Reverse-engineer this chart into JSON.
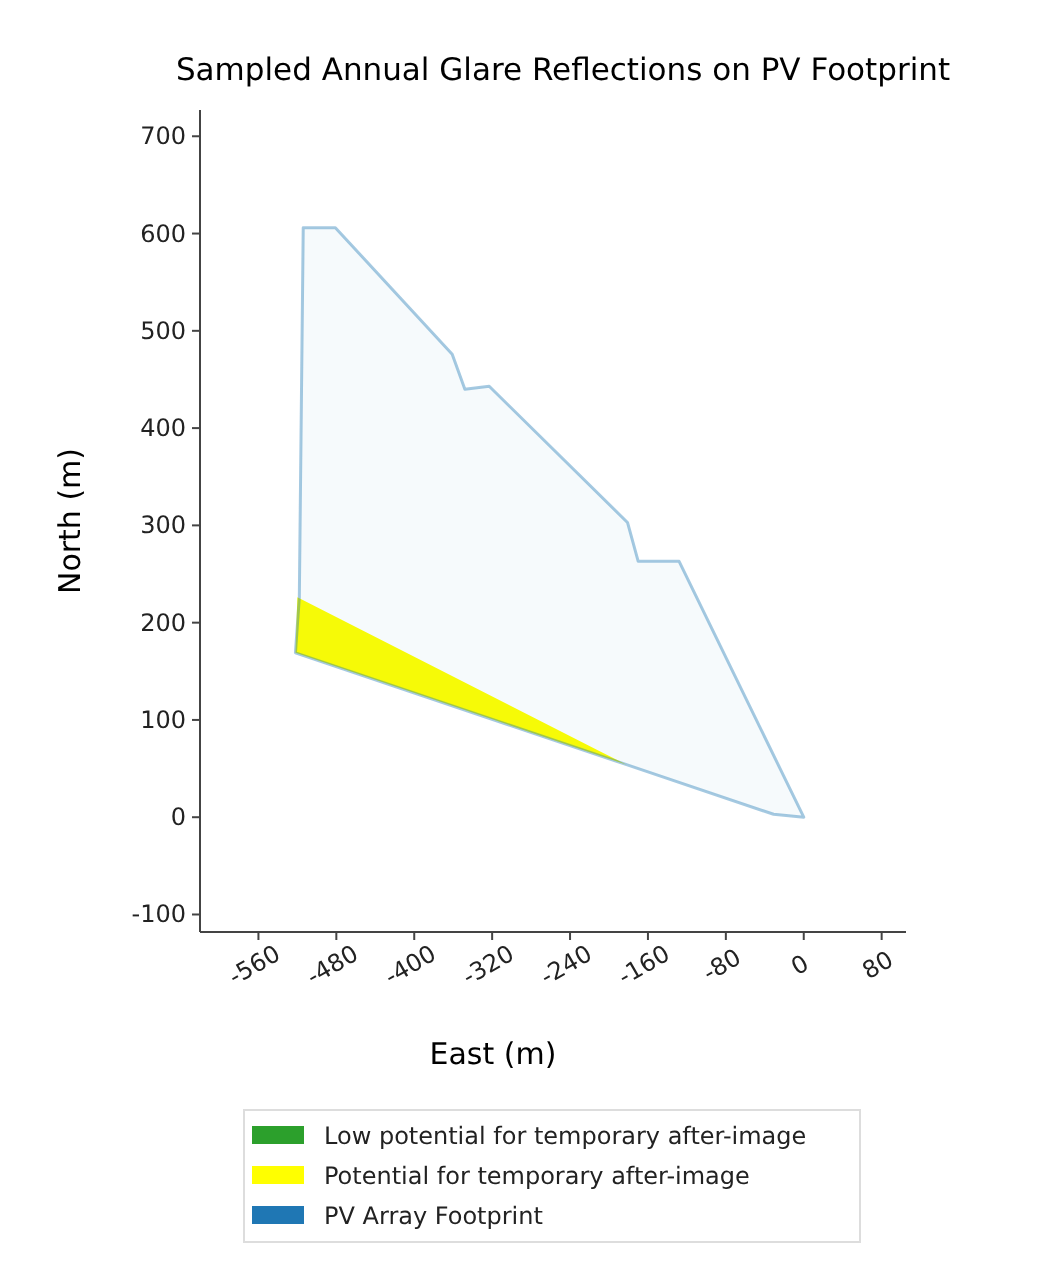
{
  "chart_data": {
    "type": "area",
    "title": "Sampled Annual Glare Reflections on PV Footprint",
    "xlabel": "East (m)",
    "ylabel": "North (m)",
    "xlim": [
      -620,
      105
    ],
    "ylim": [
      -118,
      727
    ],
    "xticks": [
      -560,
      -480,
      -400,
      -320,
      -240,
      -160,
      -80,
      0,
      80
    ],
    "yticks": [
      -100,
      0,
      100,
      200,
      300,
      400,
      500,
      600,
      700
    ],
    "grid": false,
    "legend": "bottom",
    "series": [
      {
        "name": "Low potential for temporary after-image",
        "color": "#2ca02c"
      },
      {
        "name": "Potential for temporary after-image",
        "color": "#ffff00",
        "x": [
          -520,
          -522,
          -182,
          -210
        ],
        "values": [
          226,
          169,
          54,
          68
        ]
      },
      {
        "name": "PV Array Footprint",
        "color": "#1f77b4",
        "x": [
          -514,
          -481,
          -361,
          -348,
          -323,
          -181,
          -170,
          -128,
          0,
          -31,
          -182,
          -522,
          -518,
          -514
        ],
        "values": [
          606,
          606,
          476,
          440,
          443,
          303,
          263,
          263,
          0,
          3,
          54,
          169,
          226,
          606
        ]
      }
    ]
  }
}
